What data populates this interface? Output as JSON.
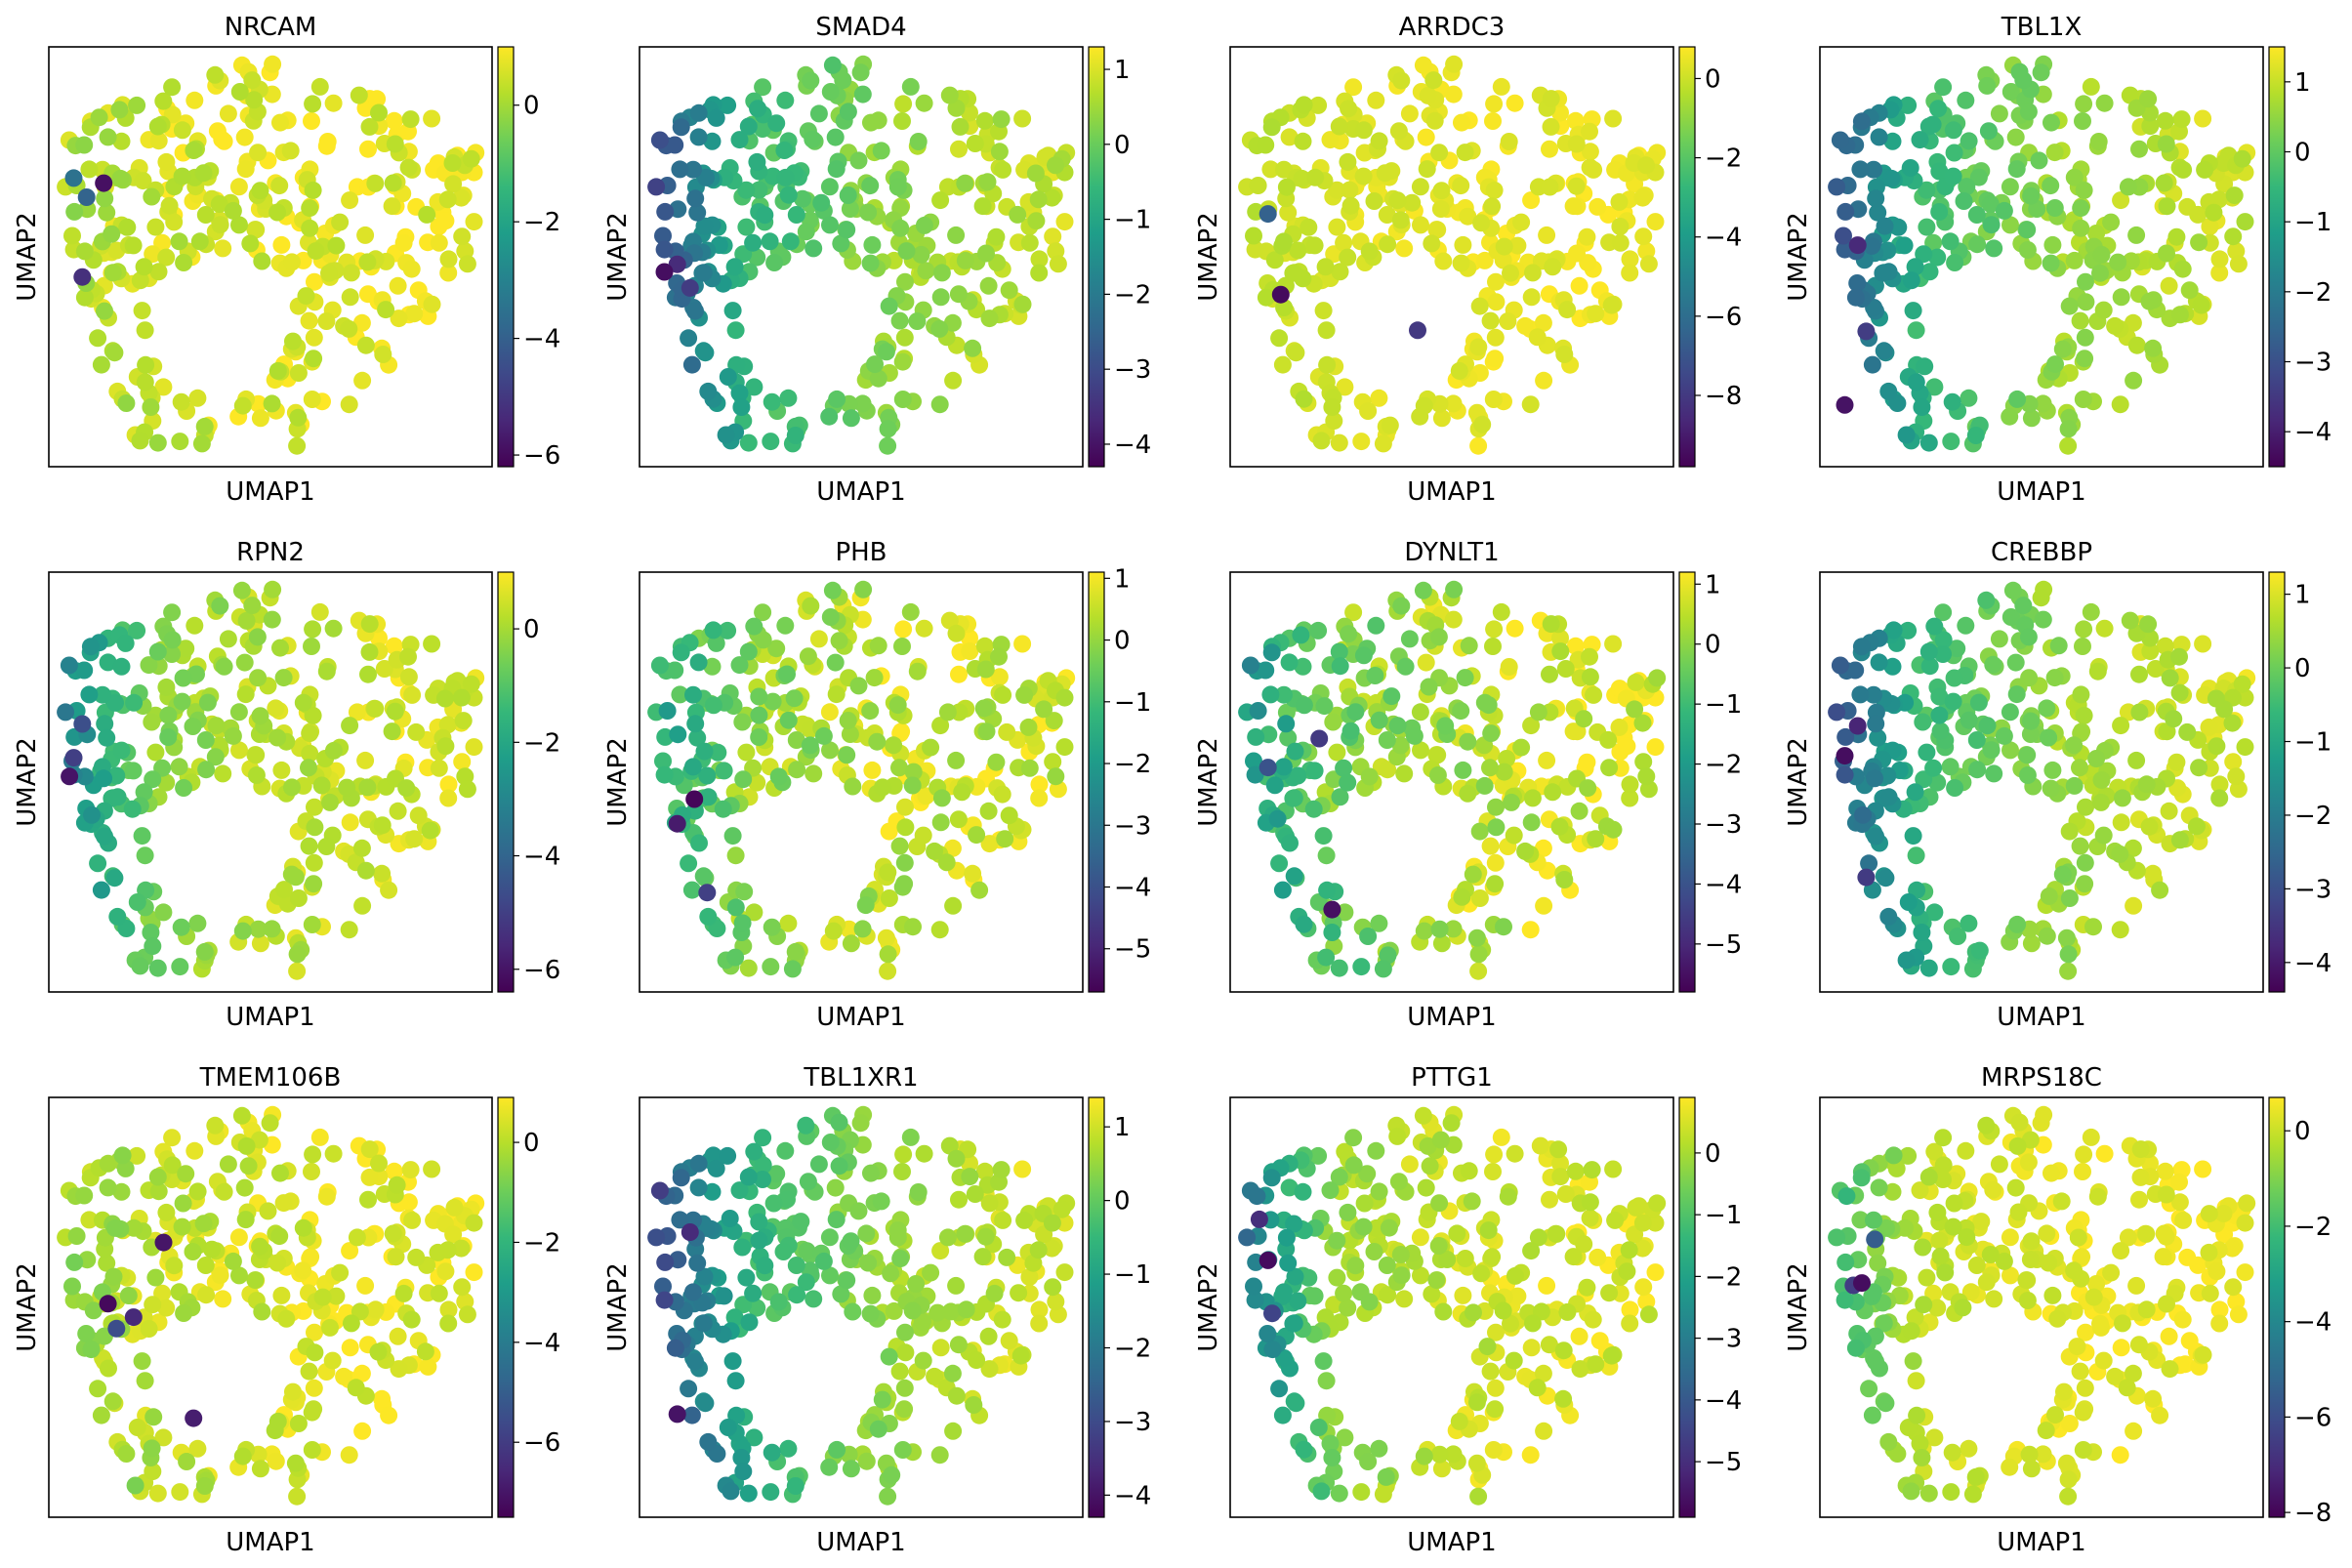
{
  "viridis": [
    "#440154",
    "#482878",
    "#3e4989",
    "#31688e",
    "#26828e",
    "#1f9e89",
    "#35b779",
    "#6ece58",
    "#b5de2b",
    "#fde725"
  ],
  "chart_data": [
    {
      "type": "scatter",
      "title": "NRCAM",
      "xlabel": "UMAP1",
      "ylabel": "UMAP2",
      "cmin": -6.2,
      "cmax": 1.0,
      "ticks": [
        {
          "v": 0,
          "label": "0"
        },
        {
          "v": -2,
          "label": "−2"
        },
        {
          "v": -4,
          "label": "−4"
        },
        {
          "v": -6,
          "label": "−6"
        }
      ],
      "seed": 11,
      "base": [
        0.35,
        0.75
      ],
      "west": 0.25,
      "sw": 0.55,
      "spread": 0.55,
      "outliers": [
        [
          0.09,
          -5.9
        ],
        [
          0.04,
          -5.2
        ],
        [
          0.02,
          -3.5
        ],
        [
          0.05,
          -3.9
        ]
      ]
    },
    {
      "type": "scatter",
      "title": "SMAD4",
      "xlabel": "UMAP1",
      "ylabel": "UMAP2",
      "cmin": -4.3,
      "cmax": 1.3,
      "ticks": [
        {
          "v": 1,
          "label": "1"
        },
        {
          "v": 0,
          "label": "0"
        },
        {
          "v": -1,
          "label": "−1"
        },
        {
          "v": -2,
          "label": "−2"
        },
        {
          "v": -3,
          "label": "−3"
        },
        {
          "v": -4,
          "label": "−4"
        }
      ],
      "seed": 23,
      "base": [
        -1.6,
        0.8
      ],
      "west": 1.6,
      "sw": 0.6,
      "spread": 0.35,
      "outliers": [
        [
          0.02,
          -4.1
        ],
        [
          0.05,
          -3.6
        ],
        [
          0.08,
          -3.3
        ]
      ]
    },
    {
      "type": "scatter",
      "title": "ARRDC3",
      "xlabel": "UMAP1",
      "ylabel": "UMAP2",
      "cmin": -9.8,
      "cmax": 0.8,
      "ticks": [
        {
          "v": 0,
          "label": "0"
        },
        {
          "v": -2,
          "label": "−2"
        },
        {
          "v": -4,
          "label": "−4"
        },
        {
          "v": -6,
          "label": "−6"
        },
        {
          "v": -8,
          "label": "−8"
        }
      ],
      "seed": 37,
      "base": [
        0.0,
        0.5
      ],
      "west": 0.4,
      "sw": 0.3,
      "spread": 0.4,
      "outliers": [
        [
          0.08,
          -9.5
        ],
        [
          0.4,
          -8.0
        ],
        [
          0.05,
          -6.5
        ]
      ]
    },
    {
      "type": "scatter",
      "title": "TBL1X",
      "xlabel": "UMAP1",
      "ylabel": "UMAP2",
      "cmin": -4.5,
      "cmax": 1.5,
      "ticks": [
        {
          "v": 1,
          "label": "1"
        },
        {
          "v": 0,
          "label": "0"
        },
        {
          "v": -1,
          "label": "−1"
        },
        {
          "v": -2,
          "label": "−2"
        },
        {
          "v": -3,
          "label": "−3"
        },
        {
          "v": -4,
          "label": "−4"
        }
      ],
      "seed": 41,
      "base": [
        -1.4,
        1.0
      ],
      "west": 1.8,
      "sw": 0.8,
      "spread": 0.35,
      "outliers": [
        [
          0.02,
          -4.2
        ],
        [
          0.05,
          -3.8
        ],
        [
          0.07,
          -3.4
        ]
      ]
    },
    {
      "type": "scatter",
      "title": "RPN2",
      "xlabel": "UMAP1",
      "ylabel": "UMAP2",
      "cmin": -6.4,
      "cmax": 1.0,
      "ticks": [
        {
          "v": 0,
          "label": "0"
        },
        {
          "v": -2,
          "label": "−2"
        },
        {
          "v": -4,
          "label": "−4"
        },
        {
          "v": -6,
          "label": "−6"
        }
      ],
      "seed": 53,
      "base": [
        -1.0,
        0.6
      ],
      "west": 2.4,
      "sw": 0.4,
      "spread": 0.5,
      "outliers": [
        [
          0.01,
          -6.0
        ],
        [
          0.02,
          -5.0
        ],
        [
          0.04,
          -4.6
        ]
      ]
    },
    {
      "type": "scatter",
      "title": "PHB",
      "xlabel": "UMAP1",
      "ylabel": "UMAP2",
      "cmin": -5.7,
      "cmax": 1.1,
      "ticks": [
        {
          "v": 1,
          "label": "1"
        },
        {
          "v": 0,
          "label": "0"
        },
        {
          "v": -1,
          "label": "−1"
        },
        {
          "v": -2,
          "label": "−2"
        },
        {
          "v": -3,
          "label": "−3"
        },
        {
          "v": -4,
          "label": "−4"
        },
        {
          "v": -5,
          "label": "−5"
        }
      ],
      "seed": 67,
      "base": [
        -0.6,
        0.7
      ],
      "west": 1.2,
      "sw": 0.3,
      "spread": 0.7,
      "outliers": [
        [
          0.09,
          -5.6
        ],
        [
          0.05,
          -5.2
        ],
        [
          0.12,
          -4.4
        ]
      ]
    },
    {
      "type": "scatter",
      "title": "DYNLT1",
      "xlabel": "UMAP1",
      "ylabel": "UMAP2",
      "cmin": -5.8,
      "cmax": 1.2,
      "ticks": [
        {
          "v": 1,
          "label": "1"
        },
        {
          "v": 0,
          "label": "0"
        },
        {
          "v": -1,
          "label": "−1"
        },
        {
          "v": -2,
          "label": "−2"
        },
        {
          "v": -3,
          "label": "−3"
        },
        {
          "v": -4,
          "label": "−4"
        },
        {
          "v": -5,
          "label": "−5"
        }
      ],
      "seed": 71,
      "base": [
        -1.0,
        0.9
      ],
      "west": 1.2,
      "sw": 1.2,
      "spread": 0.8,
      "outliers": [
        [
          0.2,
          -5.5
        ],
        [
          0.17,
          -4.6
        ],
        [
          0.05,
          -4.0
        ]
      ]
    },
    {
      "type": "scatter",
      "title": "CREBBP",
      "xlabel": "UMAP1",
      "ylabel": "UMAP2",
      "cmin": -4.4,
      "cmax": 1.3,
      "ticks": [
        {
          "v": 1,
          "label": "1"
        },
        {
          "v": 0,
          "label": "0"
        },
        {
          "v": -1,
          "label": "−1"
        },
        {
          "v": -2,
          "label": "−2"
        },
        {
          "v": -3,
          "label": "−3"
        },
        {
          "v": -4,
          "label": "−4"
        }
      ],
      "seed": 83,
      "base": [
        -1.5,
        0.9
      ],
      "west": 1.5,
      "sw": 0.7,
      "spread": 0.35,
      "outliers": [
        [
          0.02,
          -4.2
        ],
        [
          0.05,
          -3.8
        ],
        [
          0.07,
          -3.4
        ]
      ]
    },
    {
      "type": "scatter",
      "title": "TMEM106B",
      "xlabel": "UMAP1",
      "ylabel": "UMAP2",
      "cmin": -7.5,
      "cmax": 0.9,
      "ticks": [
        {
          "v": 0,
          "label": "0"
        },
        {
          "v": -2,
          "label": "−2"
        },
        {
          "v": -4,
          "label": "−4"
        },
        {
          "v": -6,
          "label": "−6"
        }
      ],
      "seed": 97,
      "base": [
        -0.2,
        0.6
      ],
      "west": 0.3,
      "sw": 0.5,
      "spread": 0.6,
      "outliers": [
        [
          0.1,
          -7.3
        ],
        [
          0.16,
          -6.5
        ],
        [
          0.12,
          -5.5
        ],
        [
          0.3,
          -6.8
        ],
        [
          0.23,
          -7.0
        ]
      ]
    },
    {
      "type": "scatter",
      "title": "TBL1XR1",
      "xlabel": "UMAP1",
      "ylabel": "UMAP2",
      "cmin": -4.3,
      "cmax": 1.4,
      "ticks": [
        {
          "v": 1,
          "label": "1"
        },
        {
          "v": 0,
          "label": "0"
        },
        {
          "v": -1,
          "label": "−1"
        },
        {
          "v": -2,
          "label": "−2"
        },
        {
          "v": -3,
          "label": "−3"
        },
        {
          "v": -4,
          "label": "−4"
        }
      ],
      "seed": 101,
      "base": [
        -1.8,
        1.0
      ],
      "west": 1.5,
      "sw": 1.0,
      "spread": 0.35,
      "outliers": [
        [
          0.05,
          -4.0
        ],
        [
          0.08,
          -3.6
        ]
      ]
    },
    {
      "type": "scatter",
      "title": "PTTG1",
      "xlabel": "UMAP1",
      "ylabel": "UMAP2",
      "cmin": -5.9,
      "cmax": 0.9,
      "ticks": [
        {
          "v": 0,
          "label": "0"
        },
        {
          "v": -1,
          "label": "−1"
        },
        {
          "v": -2,
          "label": "−2"
        },
        {
          "v": -3,
          "label": "−3"
        },
        {
          "v": -4,
          "label": "−4"
        },
        {
          "v": -5,
          "label": "−5"
        }
      ],
      "seed": 113,
      "base": [
        -0.6,
        0.6
      ],
      "west": 3.0,
      "sw": 0.8,
      "spread": 0.45,
      "outliers": [
        [
          0.05,
          -5.7
        ],
        [
          0.03,
          -5.0
        ],
        [
          0.06,
          -4.5
        ]
      ]
    },
    {
      "type": "scatter",
      "title": "MRPS18C",
      "xlabel": "UMAP1",
      "ylabel": "UMAP2",
      "cmin": -8.1,
      "cmax": 0.7,
      "ticks": [
        {
          "v": 0,
          "label": "0"
        },
        {
          "v": -2,
          "label": "−2"
        },
        {
          "v": -4,
          "label": "−4"
        },
        {
          "v": -6,
          "label": "−6"
        },
        {
          "v": -8,
          "label": "−8"
        }
      ],
      "seed": 127,
      "base": [
        -0.4,
        0.5
      ],
      "west": 2.0,
      "sw": 0.3,
      "spread": 0.45,
      "outliers": [
        [
          0.06,
          -7.8
        ],
        [
          0.04,
          -6.5
        ],
        [
          0.09,
          -5.5
        ]
      ]
    }
  ]
}
